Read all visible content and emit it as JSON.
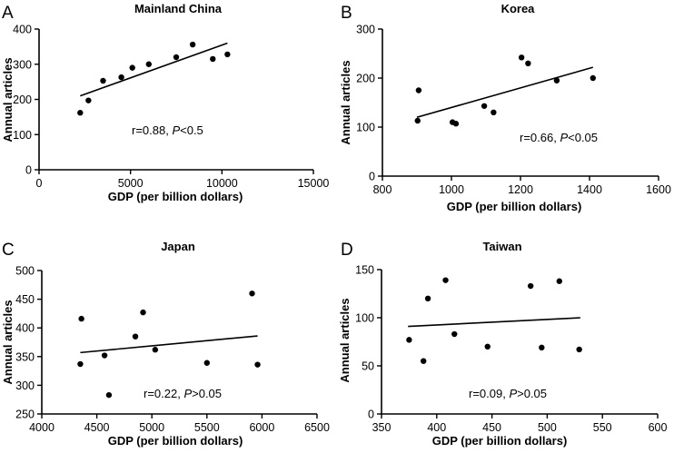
{
  "figure": {
    "background": "#ffffff",
    "ink": "#000000"
  },
  "chart_data": [
    {
      "panel": "A",
      "type": "scatter",
      "title": "Mainland China",
      "xlabel": "GDP (per billion dollars)",
      "ylabel": "Annual articles",
      "xlim": [
        0,
        15000
      ],
      "ylim": [
        0,
        400
      ],
      "xticks": [
        0,
        5000,
        10000,
        15000
      ],
      "yticks": [
        0,
        100,
        200,
        300,
        400
      ],
      "points": [
        {
          "x": 2250,
          "y": 162
        },
        {
          "x": 2700,
          "y": 197
        },
        {
          "x": 3500,
          "y": 253
        },
        {
          "x": 4500,
          "y": 263
        },
        {
          "x": 5100,
          "y": 290
        },
        {
          "x": 6000,
          "y": 300
        },
        {
          "x": 7500,
          "y": 320
        },
        {
          "x": 8400,
          "y": 356
        },
        {
          "x": 9500,
          "y": 315
        },
        {
          "x": 10300,
          "y": 328
        }
      ],
      "fit_line": [
        {
          "x": 2250,
          "y": 210
        },
        {
          "x": 10300,
          "y": 360
        }
      ],
      "stat": {
        "r": "r=0.88, ",
        "p_letter": "P",
        "p_rest": "<0.5"
      }
    },
    {
      "panel": "B",
      "type": "scatter",
      "title": "Korea",
      "xlabel": "GDP (per billion dollars)",
      "ylabel": "Annual articles",
      "xlim": [
        800,
        1600
      ],
      "ylim": [
        0,
        300
      ],
      "xticks": [
        800,
        1000,
        1200,
        1400,
        1600
      ],
      "yticks": [
        0,
        100,
        200,
        300
      ],
      "points": [
        {
          "x": 902,
          "y": 113
        },
        {
          "x": 905,
          "y": 175
        },
        {
          "x": 1003,
          "y": 110
        },
        {
          "x": 1013,
          "y": 107
        },
        {
          "x": 1095,
          "y": 143
        },
        {
          "x": 1122,
          "y": 130
        },
        {
          "x": 1203,
          "y": 242
        },
        {
          "x": 1222,
          "y": 230
        },
        {
          "x": 1305,
          "y": 195
        },
        {
          "x": 1410,
          "y": 200
        }
      ],
      "fit_line": [
        {
          "x": 900,
          "y": 120
        },
        {
          "x": 1410,
          "y": 222
        }
      ],
      "stat": {
        "r": "r=0.66, ",
        "p_letter": "P",
        "p_rest": "<0.05"
      }
    },
    {
      "panel": "C",
      "type": "scatter",
      "title": "Japan",
      "xlabel": "GDP (per billion dollars)",
      "ylabel": "Annual articles",
      "xlim": [
        4000,
        6500
      ],
      "ylim": [
        250,
        500
      ],
      "xticks": [
        4000,
        4500,
        5000,
        5500,
        6000,
        6500
      ],
      "yticks": [
        250,
        300,
        350,
        400,
        450,
        500
      ],
      "points": [
        {
          "x": 4350,
          "y": 337
        },
        {
          "x": 4360,
          "y": 416
        },
        {
          "x": 4570,
          "y": 352
        },
        {
          "x": 4610,
          "y": 283
        },
        {
          "x": 4850,
          "y": 385
        },
        {
          "x": 4920,
          "y": 427
        },
        {
          "x": 5030,
          "y": 362
        },
        {
          "x": 5500,
          "y": 339
        },
        {
          "x": 5910,
          "y": 460
        },
        {
          "x": 5960,
          "y": 336
        }
      ],
      "fit_line": [
        {
          "x": 4350,
          "y": 357
        },
        {
          "x": 5960,
          "y": 386
        }
      ],
      "stat": {
        "r": "r=0.22, ",
        "p_letter": "P",
        "p_rest": ">0.05"
      }
    },
    {
      "panel": "D",
      "type": "scatter",
      "title": "Taiwan",
      "xlabel": "GDP (per billion dollars)",
      "ylabel": "Annual articles",
      "xlim": [
        350,
        600
      ],
      "ylim": [
        0,
        150
      ],
      "xticks": [
        350,
        400,
        450,
        500,
        550,
        600
      ],
      "yticks": [
        0,
        50,
        100,
        150
      ],
      "points": [
        {
          "x": 375,
          "y": 77
        },
        {
          "x": 388,
          "y": 55
        },
        {
          "x": 392,
          "y": 120
        },
        {
          "x": 408,
          "y": 139
        },
        {
          "x": 416,
          "y": 83
        },
        {
          "x": 446,
          "y": 70
        },
        {
          "x": 485,
          "y": 133
        },
        {
          "x": 495,
          "y": 69
        },
        {
          "x": 511,
          "y": 138
        },
        {
          "x": 529,
          "y": 67
        }
      ],
      "fit_line": [
        {
          "x": 374,
          "y": 91
        },
        {
          "x": 530,
          "y": 100
        }
      ],
      "stat": {
        "r": "r=0.09, ",
        "p_letter": "P",
        "p_rest": ">0.05"
      }
    }
  ]
}
